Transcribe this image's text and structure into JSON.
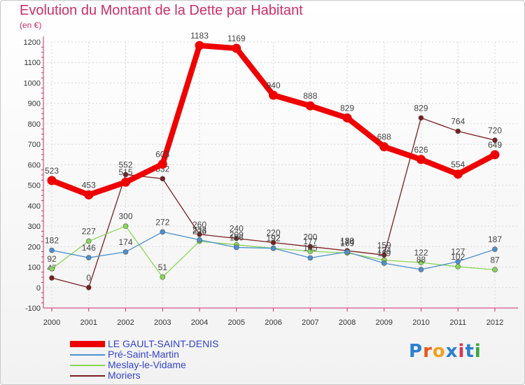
{
  "title": "Evolution du Montant de la Dette par Habitant",
  "subtitle": "(en €)",
  "logo": {
    "text": "Proxiti",
    "colors": [
      "#2a7fd4",
      "#e8561b",
      "#f0a020",
      "#2a7fd4",
      "#d8344e",
      "#2a7fd4",
      "#3aa63a"
    ]
  },
  "chart_data": {
    "type": "line",
    "categories": [
      "2000",
      "2001",
      "2002",
      "2003",
      "2004",
      "2005",
      "2006",
      "2007",
      "2008",
      "2009",
      "2010",
      "2011",
      "2012"
    ],
    "ylim": [
      -100,
      1200
    ],
    "yticks": [
      "-100",
      "0",
      "100",
      "200",
      "300",
      "400",
      "500",
      "600",
      "700",
      "800",
      "900",
      "1000",
      "1100",
      "1200"
    ],
    "series": [
      {
        "name": "LE GAULT-SAINT-DENIS",
        "color": "#ee0000",
        "values": [
          523,
          453,
          515,
          603,
          1183,
          1169,
          940,
          888,
          829,
          688,
          626,
          554,
          649
        ],
        "labels": [
          "523",
          "453",
          "515",
          "603",
          "1183",
          "1169",
          "940",
          "888",
          "829",
          "688",
          "626",
          "554",
          "649"
        ]
      },
      {
        "name": "Pré-Saint-Martin",
        "color": "#4d90cc",
        "values": [
          182,
          146,
          174,
          272,
          233,
          196,
          192,
          145,
          174,
          119,
          88,
          127,
          187
        ],
        "labels": [
          "182",
          "146",
          "174",
          "272",
          "233",
          "196",
          "192",
          "145",
          "174",
          "119",
          "88",
          "127",
          "187"
        ]
      },
      {
        "name": "Meslay-le-Vidame",
        "color": "#88d855",
        "values": [
          92,
          227,
          300,
          51,
          226,
          209,
          192,
          177,
          169,
          134,
          122,
          102,
          87
        ],
        "labels": [
          "92",
          "227",
          "300",
          "51",
          "226",
          "209",
          "192",
          "177",
          "169",
          "134",
          "122",
          "102",
          "87"
        ]
      },
      {
        "name": "Moriers",
        "color": "#7a1f1f",
        "values": [
          47,
          0,
          552,
          532,
          260,
          240,
          220,
          200,
          180,
          159,
          829,
          764,
          720
        ],
        "labels": [
          "47",
          "0",
          "552",
          "532",
          "260",
          "240",
          "220",
          "200",
          "180",
          "159",
          "829",
          "764",
          "720"
        ]
      }
    ]
  }
}
